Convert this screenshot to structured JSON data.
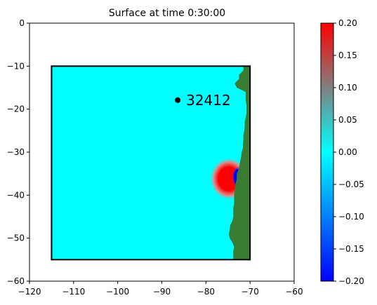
{
  "chart_data": {
    "type": "heatmap",
    "title": "Surface at time 0:30:00",
    "xlabel": "",
    "ylabel": "",
    "xlim": [
      -120,
      -60
    ],
    "ylim": [
      -60,
      0
    ],
    "xticks": [
      -120,
      -110,
      -100,
      -90,
      -80,
      -70,
      -60
    ],
    "yticks": [
      0,
      -10,
      -20,
      -30,
      -40,
      -50,
      -60
    ],
    "grid": false,
    "domain_box": {
      "x": [
        -115,
        -70
      ],
      "y": [
        -55,
        -10
      ]
    },
    "gauge": {
      "label": "32412",
      "x": -86.4,
      "y": -17.9,
      "color": "#000000"
    },
    "colorbar": {
      "range": [
        -0.2,
        0.2
      ],
      "ticks": [
        0.2,
        0.15,
        0.1,
        0.05,
        0.0,
        -0.05,
        -0.1,
        -0.15,
        -0.2
      ],
      "tick_labels": [
        "0.20",
        "0.15",
        "0.10",
        "0.05",
        "0.00",
        "−0.05",
        "−0.10",
        "−0.15",
        "−0.20"
      ],
      "colors": {
        "low": "#0000ff",
        "zero": "#00ffff",
        "mid_high": "#808080",
        "high": "#ff0000"
      }
    },
    "colors": {
      "water": "#00ffff",
      "land": "#3a7d32"
    },
    "land_profile": [
      [
        -10,
        -71.5
      ],
      [
        -11,
        -71.5
      ],
      [
        -12,
        -72.5
      ],
      [
        -13,
        -72.5
      ],
      [
        -14,
        -73.5
      ],
      [
        -15,
        -73.0
      ],
      [
        -16,
        -71.0
      ],
      [
        -17,
        -71.0
      ],
      [
        -18,
        -71.0
      ],
      [
        -19,
        -70.8
      ],
      [
        -20,
        -70.8
      ],
      [
        -21,
        -70.8
      ],
      [
        -22,
        -71.0
      ],
      [
        -23,
        -71.2
      ],
      [
        -24,
        -71.2
      ],
      [
        -25,
        -71.3
      ],
      [
        -26,
        -71.5
      ],
      [
        -27,
        -71.5
      ],
      [
        -28,
        -71.6
      ],
      [
        -29,
        -71.6
      ],
      [
        -30,
        -71.9
      ],
      [
        -31,
        -72.0
      ],
      [
        -32,
        -72.2
      ],
      [
        -33,
        -72.4
      ],
      [
        -34,
        -72.6
      ],
      [
        -35,
        -73.0
      ],
      [
        -36,
        -73.0
      ],
      [
        -37,
        -73.2
      ],
      [
        -38,
        -73.4
      ],
      [
        -39,
        -73.5
      ],
      [
        -40,
        -73.6
      ],
      [
        -41,
        -73.6
      ],
      [
        -42,
        -73.6
      ],
      [
        -43,
        -73.8
      ],
      [
        -44,
        -73.8
      ],
      [
        -45,
        -73.8
      ],
      [
        -46,
        -74.0
      ],
      [
        -47,
        -74.5
      ],
      [
        -48,
        -74.6
      ],
      [
        -49,
        -74.8
      ],
      [
        -50,
        -74.6
      ],
      [
        -51,
        -74.0
      ],
      [
        -52,
        -73.6
      ],
      [
        -53,
        -73.8
      ],
      [
        -54,
        -73.8
      ],
      [
        -55,
        -73.8
      ]
    ],
    "fields": {
      "positive_lobe": {
        "cx": -74.8,
        "cy": -36.2,
        "rx": 4.4,
        "ry": 5.0,
        "value": 0.2
      },
      "negative_lobe": {
        "cx": -72.8,
        "cy": -35.8,
        "rx": 1.2,
        "ry": 2.4,
        "value": -0.2
      }
    }
  }
}
